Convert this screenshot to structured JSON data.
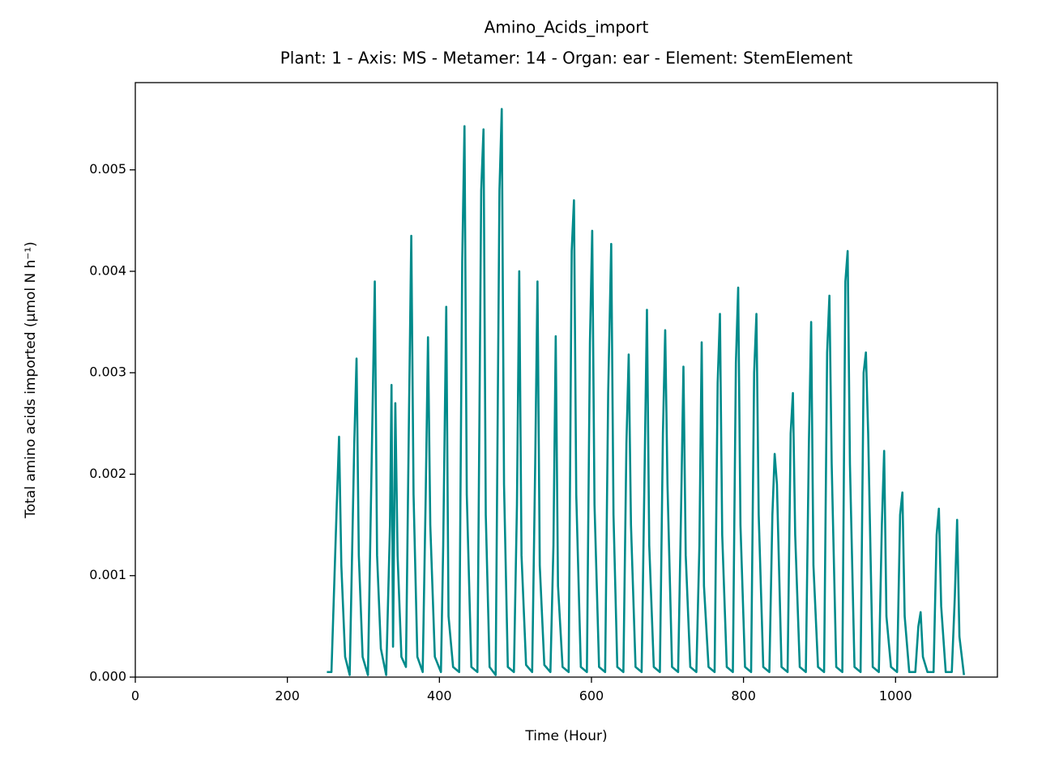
{
  "chart_data": {
    "type": "line",
    "title": "Amino_Acids_import",
    "subtitle": "Plant: 1 - Axis: MS - Metamer: 14 - Organ: ear - Element: StemElement",
    "xlabel": "Time (Hour)",
    "ylabel": "Total amino acids imported (µmol N h⁻¹)",
    "xlim": [
      0,
      1134
    ],
    "ylim": [
      0,
      0.00586
    ],
    "xticks": [
      0,
      200,
      400,
      600,
      800,
      1000
    ],
    "yticks": [
      {
        "value": 0,
        "label": "0.000"
      },
      {
        "value": 0.001,
        "label": "0.001"
      },
      {
        "value": 0.002,
        "label": "0.002"
      },
      {
        "value": 0.003,
        "label": "0.003"
      },
      {
        "value": 0.004,
        "label": "0.004"
      },
      {
        "value": 0.005,
        "label": "0.005"
      }
    ],
    "color": "#008b8b",
    "x": [
      252,
      258,
      265,
      268,
      271,
      276,
      282,
      288,
      291,
      294,
      299,
      306,
      312,
      315,
      318,
      323,
      330,
      335,
      337,
      339,
      342,
      345,
      350,
      356,
      360,
      363,
      366,
      371,
      378,
      382,
      385,
      388,
      394,
      402,
      405,
      409,
      412,
      418,
      426,
      430,
      433,
      436,
      442,
      450,
      455,
      458,
      461,
      466,
      474,
      479,
      482,
      485,
      490,
      498,
      502,
      505,
      508,
      514,
      522,
      526,
      529,
      532,
      538,
      546,
      550,
      553,
      556,
      562,
      570,
      574,
      577,
      580,
      586,
      594,
      598,
      601,
      604,
      610,
      618,
      622,
      626,
      629,
      634,
      642,
      646,
      649,
      652,
      658,
      666,
      670,
      673,
      676,
      682,
      690,
      694,
      697,
      700,
      706,
      714,
      718,
      721,
      724,
      730,
      738,
      742,
      745,
      748,
      754,
      762,
      766,
      769,
      772,
      778,
      786,
      790,
      793,
      796,
      802,
      810,
      814,
      817,
      820,
      826,
      834,
      838,
      841,
      844,
      850,
      858,
      862,
      865,
      868,
      874,
      882,
      886,
      889,
      892,
      898,
      906,
      910,
      913,
      916,
      922,
      930,
      934,
      937,
      940,
      946,
      954,
      958,
      961,
      964,
      970,
      978,
      982,
      985,
      988,
      994,
      1002,
      1006,
      1009,
      1012,
      1018,
      1026,
      1030,
      1033,
      1036,
      1042,
      1050,
      1054,
      1057,
      1060,
      1066,
      1074,
      1078,
      1081,
      1084,
      1090
    ],
    "values": [
      5e-05,
      5e-05,
      0.0017,
      0.00237,
      0.0011,
      0.0002,
      2e-05,
      0.0023,
      0.00314,
      0.0012,
      0.0002,
      2e-05,
      0.0026,
      0.0039,
      0.0012,
      0.00028,
      2e-05,
      0.0015,
      0.00288,
      0.0003,
      0.0027,
      0.0012,
      0.0002,
      0.0001,
      0.0026,
      0.00435,
      0.0018,
      0.0002,
      5e-05,
      0.0018,
      0.00335,
      0.0015,
      0.0002,
      5e-05,
      0.0013,
      0.00365,
      0.0006,
      0.0001,
      5e-05,
      0.0041,
      0.00543,
      0.0018,
      0.0001,
      5e-05,
      0.0048,
      0.0054,
      0.0016,
      0.0001,
      2e-05,
      0.0048,
      0.0056,
      0.0019,
      0.0001,
      5e-05,
      0.0017,
      0.004,
      0.0012,
      0.00012,
      5e-05,
      0.0021,
      0.0039,
      0.0011,
      0.00012,
      5e-05,
      0.0013,
      0.00336,
      0.0009,
      0.0001,
      5e-05,
      0.0042,
      0.0047,
      0.0018,
      0.0001,
      5e-05,
      0.0033,
      0.0044,
      0.0017,
      0.0001,
      5e-05,
      0.0028,
      0.00427,
      0.0016,
      0.0001,
      5e-05,
      0.0023,
      0.00318,
      0.0015,
      0.0001,
      5e-05,
      0.0021,
      0.00362,
      0.0013,
      0.0001,
      5e-05,
      0.0024,
      0.00342,
      0.0019,
      0.0001,
      5e-05,
      0.0017,
      0.00306,
      0.0012,
      0.0001,
      5e-05,
      0.0013,
      0.0033,
      0.0009,
      0.0001,
      5e-05,
      0.0029,
      0.00358,
      0.0014,
      0.0001,
      5e-05,
      0.0031,
      0.00384,
      0.0015,
      0.0001,
      5e-05,
      0.003,
      0.00358,
      0.0016,
      0.0001,
      5e-05,
      0.0016,
      0.0022,
      0.0019,
      0.0001,
      5e-05,
      0.0024,
      0.0028,
      0.0014,
      0.0001,
      5e-05,
      0.0023,
      0.0035,
      0.0011,
      0.0001,
      5e-05,
      0.0032,
      0.00376,
      0.0021,
      0.0001,
      5e-05,
      0.0039,
      0.0042,
      0.0021,
      0.0001,
      5e-05,
      0.003,
      0.0032,
      0.0024,
      0.0001,
      5e-05,
      0.0015,
      0.00223,
      0.0006,
      0.0001,
      5e-05,
      0.0016,
      0.00182,
      0.0006,
      5e-05,
      5e-05,
      0.0005,
      0.00064,
      0.0002,
      5e-05,
      5e-05,
      0.0014,
      0.00166,
      0.0007,
      5e-05,
      5e-05,
      0.0008,
      0.00155,
      0.0004,
      2e-05
    ]
  }
}
